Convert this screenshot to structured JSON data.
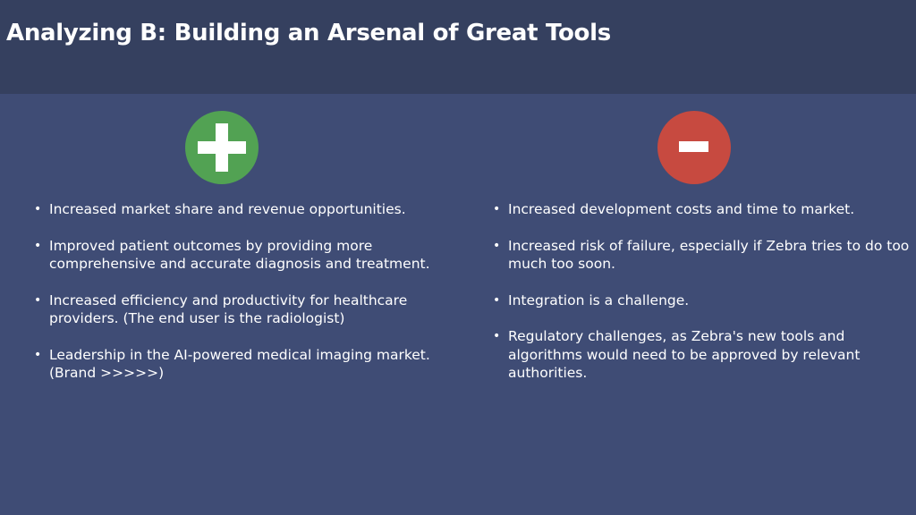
{
  "header": {
    "title": "Analyzing B: Building an Arsenal of Great Tools"
  },
  "colors": {
    "background": "#3f4c75",
    "header_background": "#35405f",
    "pro_icon": "#52a253",
    "con_icon": "#c74a40",
    "text": "#ffffff"
  },
  "pros": {
    "icon": "plus-icon",
    "items": [
      "Increased market share and revenue opportunities.",
      "Improved patient outcomes by providing more comprehensive and accurate diagnosis and treatment.",
      "Increased efficiency and productivity for healthcare providers. (The end user is the radiologist)",
      "Leadership in the AI-powered medical imaging market. (Brand >>>>>)"
    ]
  },
  "cons": {
    "icon": "minus-icon",
    "items": [
      "Increased development costs and time to market.",
      "Increased risk of failure, especially if Zebra tries to do too much too soon.",
      "Integration is a challenge.",
      "Regulatory challenges, as Zebra's new tools and algorithms would need to be approved by relevant authorities."
    ]
  }
}
